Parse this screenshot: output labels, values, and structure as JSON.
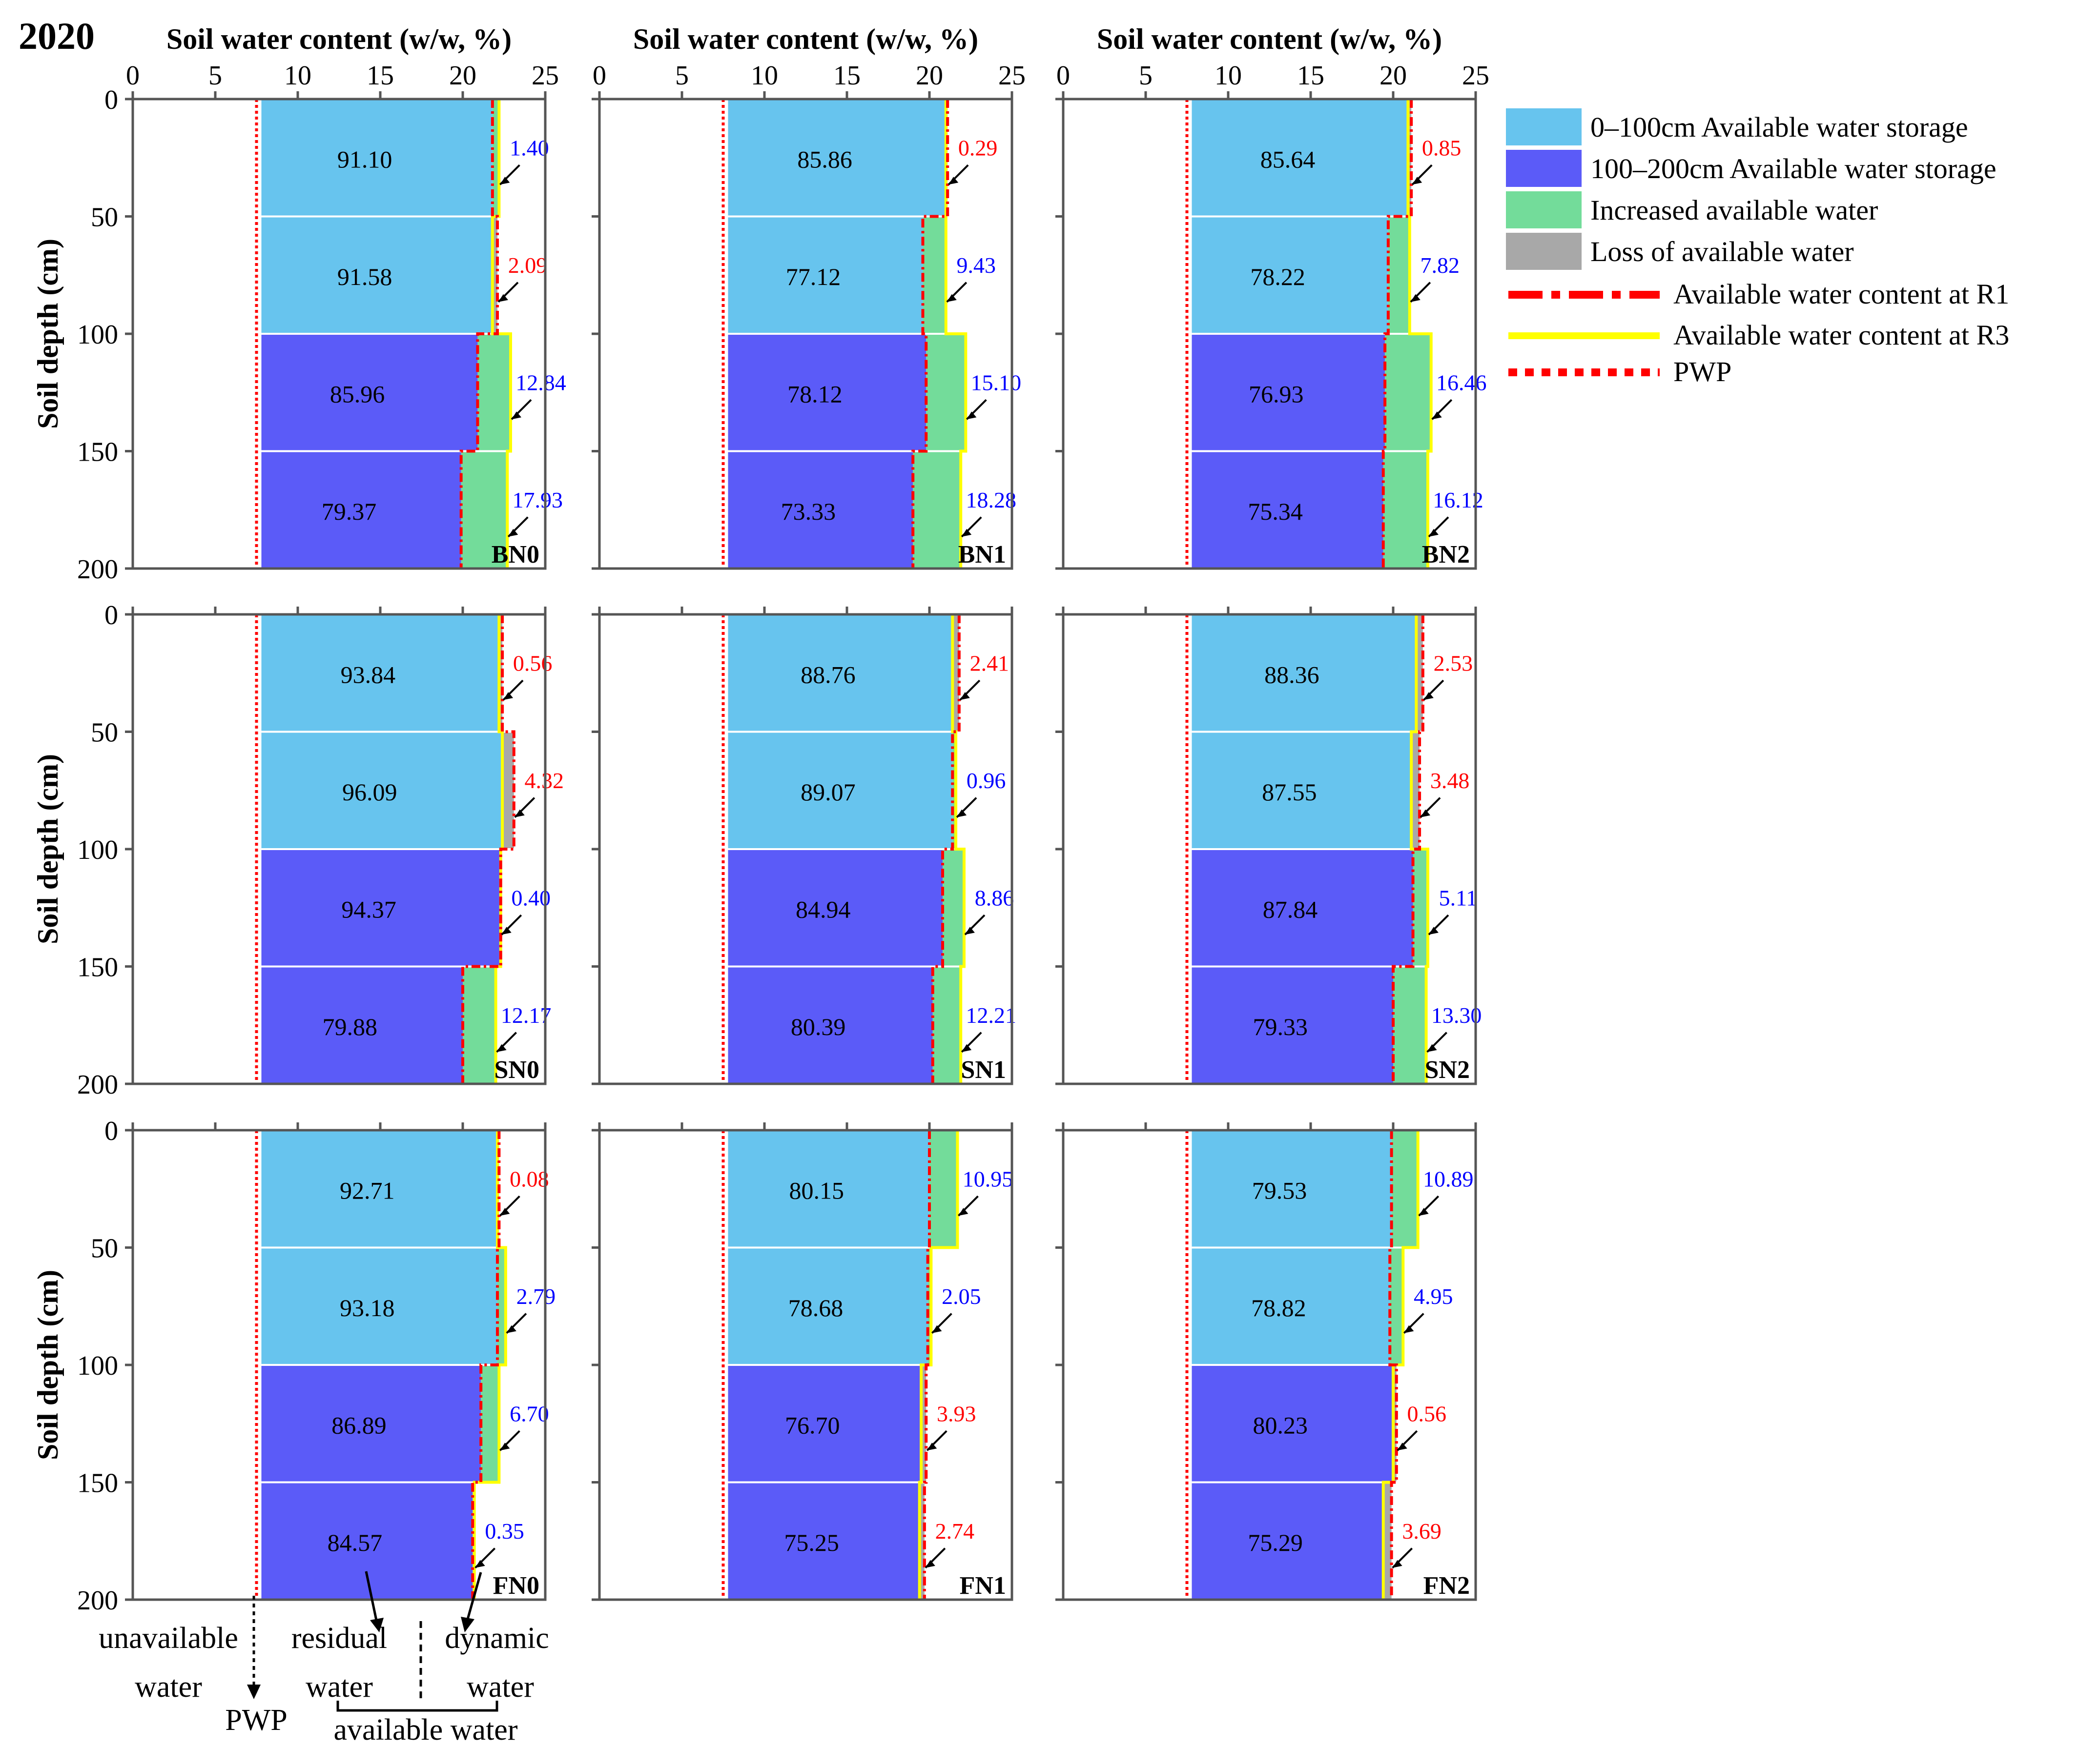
{
  "year_label": "2020",
  "legend": {
    "items": [
      {
        "label": "0–100cm Available water storage",
        "kind": "box",
        "color": "#67c4ee"
      },
      {
        "label": "100–200cm Available water storage",
        "kind": "box",
        "color": "#5b5bf8"
      },
      {
        "label": "Increased available water",
        "kind": "box",
        "color": "#73dc9a"
      },
      {
        "label": "Loss of available water",
        "kind": "box",
        "color": "#a8a8a8"
      },
      {
        "label": "Available water content at R1",
        "kind": "dashdot",
        "color": "#ff0000"
      },
      {
        "label": "Available water content at R3",
        "kind": "solid",
        "color": "#ffff00"
      },
      {
        "label": "PWP",
        "kind": "dotted",
        "color": "#ff0000"
      }
    ]
  },
  "annotations": {
    "unavailable_water": [
      "unavailable",
      "water"
    ],
    "pwp": "PWP",
    "residual_water": [
      "residual",
      "water"
    ],
    "dynamic_water": [
      "dynamic",
      "water"
    ],
    "available_water": "available water"
  },
  "colors": {
    "shallow": "#67c4ee",
    "deep": "#5b5bf8",
    "increase": "#73dc9a",
    "loss": "#a8a8a8",
    "r1": "#ff0000",
    "r3": "#ffff00",
    "pwp": "#ff0000",
    "label_increase": "#0000ff",
    "label_loss": "#ff0000"
  },
  "chart_data": {
    "type": "bar",
    "orientation": "horizontal-profile",
    "xlabel": "Soil water content (w/w, %)",
    "ylabel": "Soil depth (cm)",
    "xlim": [
      0,
      25
    ],
    "ylim": [
      0,
      200
    ],
    "xticks": [
      0,
      5,
      10,
      15,
      20,
      25
    ],
    "yticks": [
      0,
      50,
      100,
      150,
      200
    ],
    "pwp": 7.5,
    "depth_layers": [
      "0-50",
      "50-100",
      "100-150",
      "150-200"
    ],
    "panels": [
      {
        "name": "BN0",
        "storage": [
          "91.10",
          "91.58",
          "85.96",
          "79.37"
        ],
        "change": [
          "1.40",
          "2.09",
          "12.84",
          "17.93"
        ],
        "change_sign": [
          1,
          -1,
          1,
          1
        ],
        "r1": [
          21.8,
          22.1,
          20.9,
          19.9
        ],
        "r3": [
          22.2,
          21.8,
          22.9,
          22.7
        ]
      },
      {
        "name": "BN1",
        "storage": [
          "85.86",
          "77.12",
          "78.12",
          "73.33"
        ],
        "change": [
          "0.29",
          "9.43",
          "15.10",
          "18.28"
        ],
        "change_sign": [
          -1,
          1,
          1,
          1
        ],
        "r1": [
          21.1,
          19.6,
          19.8,
          19.0
        ],
        "r3": [
          21.0,
          21.0,
          22.2,
          21.9
        ]
      },
      {
        "name": "BN2",
        "storage": [
          "85.64",
          "78.22",
          "76.93",
          "75.34"
        ],
        "change": [
          "0.85",
          "7.82",
          "16.46",
          "16.12"
        ],
        "change_sign": [
          -1,
          1,
          1,
          1
        ],
        "r1": [
          21.1,
          19.7,
          19.5,
          19.4
        ],
        "r3": [
          20.9,
          21.0,
          22.3,
          22.1
        ]
      },
      {
        "name": "SN0",
        "storage": [
          "93.84",
          "96.09",
          "94.37",
          "79.88"
        ],
        "change": [
          "0.56",
          "4.32",
          "0.40",
          "12.17"
        ],
        "change_sign": [
          -1,
          -1,
          1,
          1
        ],
        "r1": [
          22.4,
          23.1,
          22.3,
          20.0
        ],
        "r3": [
          22.2,
          22.4,
          22.3,
          22.0
        ]
      },
      {
        "name": "SN1",
        "storage": [
          "88.76",
          "89.07",
          "84.94",
          "80.39"
        ],
        "change": [
          "2.41",
          "0.96",
          "8.86",
          "12.21"
        ],
        "change_sign": [
          -1,
          1,
          1,
          1
        ],
        "r1": [
          21.8,
          21.4,
          20.8,
          20.2
        ],
        "r3": [
          21.4,
          21.6,
          22.1,
          21.9
        ]
      },
      {
        "name": "SN2",
        "storage": [
          "88.36",
          "87.55",
          "87.84",
          "79.33"
        ],
        "change": [
          "2.53",
          "3.48",
          "5.11",
          "13.30"
        ],
        "change_sign": [
          -1,
          -1,
          1,
          1
        ],
        "r1": [
          21.8,
          21.6,
          21.2,
          20.0
        ],
        "r3": [
          21.4,
          21.1,
          22.1,
          22.0
        ]
      },
      {
        "name": "FN0",
        "storage": [
          "92.71",
          "93.18",
          "86.89",
          "84.57"
        ],
        "change": [
          "0.08",
          "2.79",
          "6.70",
          "0.35"
        ],
        "change_sign": [
          -1,
          1,
          1,
          1
        ],
        "r1": [
          22.2,
          22.1,
          21.1,
          20.6
        ],
        "r3": [
          22.1,
          22.6,
          22.2,
          20.7
        ]
      },
      {
        "name": "FN1",
        "storage": [
          "80.15",
          "78.68",
          "76.70",
          "75.25"
        ],
        "change": [
          "10.95",
          "2.05",
          "3.93",
          "2.74"
        ],
        "change_sign": [
          1,
          1,
          -1,
          -1
        ],
        "r1": [
          20.0,
          19.9,
          19.8,
          19.7
        ],
        "r3": [
          21.7,
          20.1,
          19.5,
          19.4
        ]
      },
      {
        "name": "FN2",
        "storage": [
          "79.53",
          "78.82",
          "80.23",
          "75.29"
        ],
        "change": [
          "10.89",
          "4.95",
          "0.56",
          "3.69"
        ],
        "change_sign": [
          1,
          1,
          -1,
          -1
        ],
        "r1": [
          19.9,
          19.8,
          20.2,
          19.9
        ],
        "r3": [
          21.5,
          20.6,
          20.0,
          19.4
        ]
      }
    ]
  }
}
